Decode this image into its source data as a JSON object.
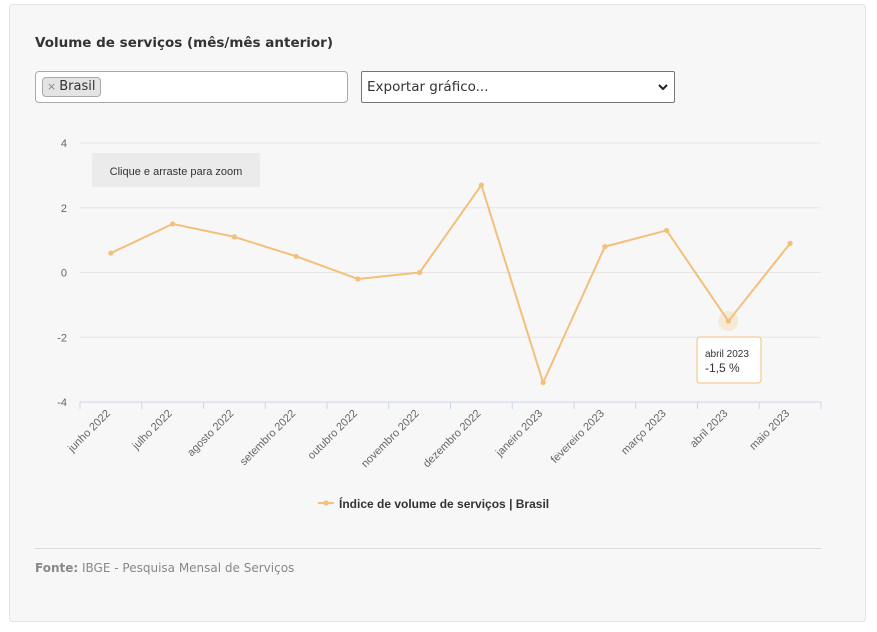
{
  "title": "Volume de serviços (mês/mês anterior)",
  "filter": {
    "remove_symbol": "×",
    "selected": "Brasil"
  },
  "export": {
    "selected": "Exportar gráfico..."
  },
  "zoom_hint": "Clique e arraste para zoom",
  "tooltip": {
    "label": "abril 2023",
    "value": "-1,5 %"
  },
  "footer": {
    "source_label": "Fonte:",
    "source_text": "IBGE - Pesquisa Mensal de Serviços"
  },
  "colors": {
    "series": "#f3c07b",
    "grid": "#e6e6e6",
    "axis": "#ccd6eb"
  },
  "chart_data": {
    "type": "line",
    "categories": [
      "junho 2022",
      "julho 2022",
      "agosto 2022",
      "setembro 2022",
      "outubro 2022",
      "novembro 2022",
      "dezembro 2022",
      "janeiro 2023",
      "fevereiro 2023",
      "março 2023",
      "abril 2023",
      "maio 2023"
    ],
    "series": [
      {
        "name": "Índice de volume de serviços | Brasil",
        "values": [
          0.6,
          1.5,
          1.1,
          0.5,
          -0.2,
          0.0,
          2.7,
          -3.4,
          0.8,
          1.3,
          -1.5,
          0.9
        ]
      }
    ],
    "yticks": [
      "4",
      "2",
      "0",
      "-2",
      "-4"
    ],
    "ylim": [
      -4,
      4
    ],
    "grid": true,
    "legend": "bottom-center",
    "highlighted_point": "abril 2023"
  }
}
